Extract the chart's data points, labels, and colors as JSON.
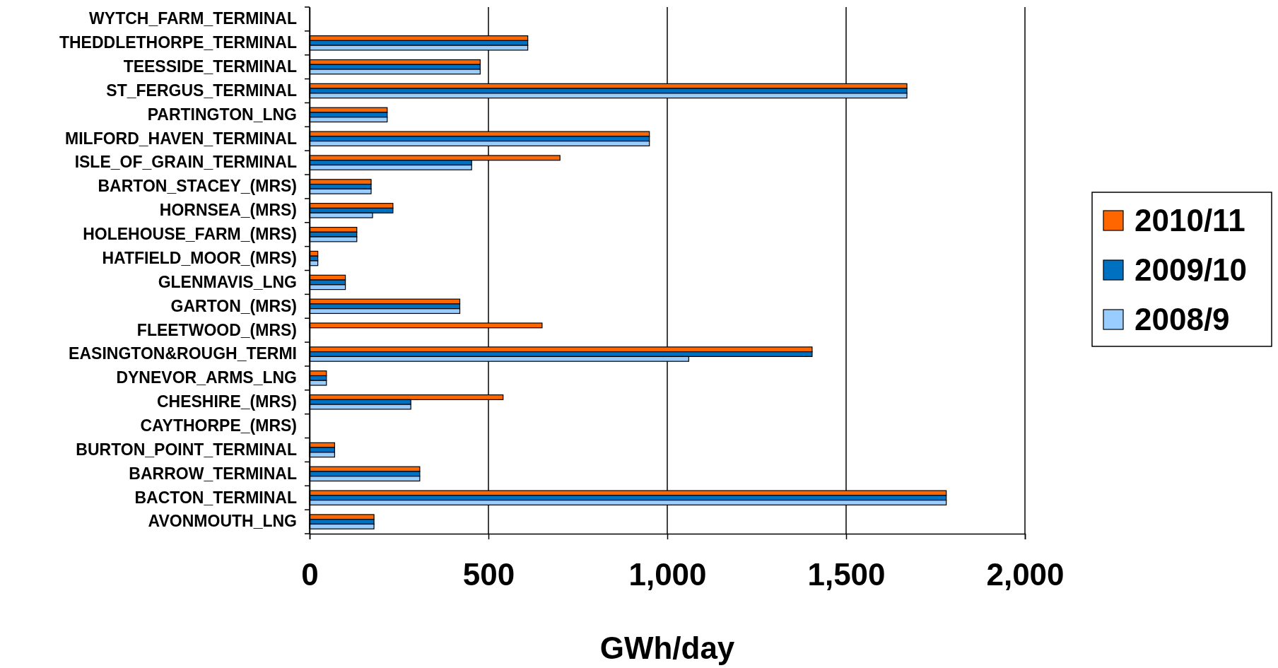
{
  "chart_data": {
    "type": "bar",
    "orientation": "horizontal",
    "xlabel": "GWh/day",
    "categories": [
      "WYTCH_FARM_TERMINAL",
      "THEDDLETHORPE_TERMINAL",
      "TEESSIDE_TERMINAL",
      "ST_FERGUS_TERMINAL",
      "PARTINGTON_LNG",
      "MILFORD_HAVEN_TERMINAL",
      "ISLE_OF_GRAIN_TERMINAL",
      "BARTON_STACEY_(MRS)",
      "HORNSEA_(MRS)",
      "HOLEHOUSE_FARM_(MRS)",
      "HATFIELD_MOOR_(MRS)",
      "GLENMAVIS_LNG",
      "GARTON_(MRS)",
      "FLEETWOOD_(MRS)",
      "EASINGTON&ROUGH_TERMI",
      "DYNEVOR_ARMS_LNG",
      "CHESHIRE_(MRS)",
      "CAYTHORPE_(MRS)",
      "BURTON_POINT_TERMINAL",
      "BARROW_TERMINAL",
      "BACTON_TERMINAL",
      "AVONMOUTH_LNG"
    ],
    "series": [
      {
        "name": "2010/11",
        "color": "#ff6600",
        "values": [
          0,
          610,
          477,
          1670,
          217,
          950,
          700,
          172,
          233,
          132,
          23,
          100,
          420,
          650,
          1405,
          47,
          541,
          0,
          70,
          308,
          1780,
          180
        ]
      },
      {
        "name": "2009/10",
        "color": "#0070c0",
        "values": [
          0,
          610,
          477,
          1670,
          217,
          950,
          453,
          172,
          233,
          132,
          23,
          100,
          420,
          0,
          1405,
          47,
          283,
          0,
          70,
          308,
          1780,
          180
        ]
      },
      {
        "name": "2008/9",
        "color": "#99ccff",
        "values": [
          0,
          610,
          477,
          1670,
          217,
          950,
          453,
          172,
          176,
          132,
          23,
          100,
          420,
          0,
          1060,
          47,
          283,
          0,
          70,
          308,
          1780,
          180
        ]
      }
    ],
    "xlim": [
      0,
      2000
    ],
    "xticks": [
      0,
      {
        "value": 500,
        "label": "500"
      },
      {
        "value": 1000,
        "label": "1,000"
      },
      {
        "value": 1500,
        "label": "1,500"
      },
      {
        "value": 2000,
        "label": "2,000"
      }
    ],
    "grid": "x",
    "legend": "right"
  }
}
